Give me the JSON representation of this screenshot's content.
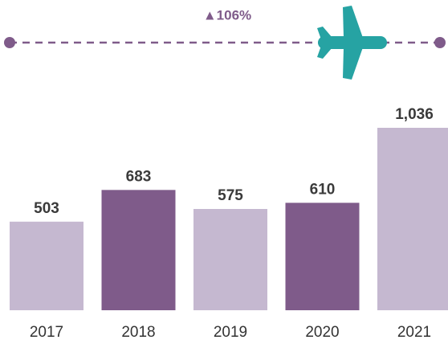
{
  "chart_data": {
    "type": "bar",
    "annotation": "▲106%",
    "categories": [
      "2017",
      "2018",
      "2019",
      "2020",
      "2021"
    ],
    "values": [
      503,
      683,
      575,
      610,
      1036
    ],
    "value_labels": [
      "503",
      "683",
      "575",
      "610",
      "1,036"
    ],
    "colors": [
      "#c5b8d0",
      "#7f5b8a",
      "#c5b8d0",
      "#7f5b8a",
      "#c5b8d0"
    ]
  }
}
